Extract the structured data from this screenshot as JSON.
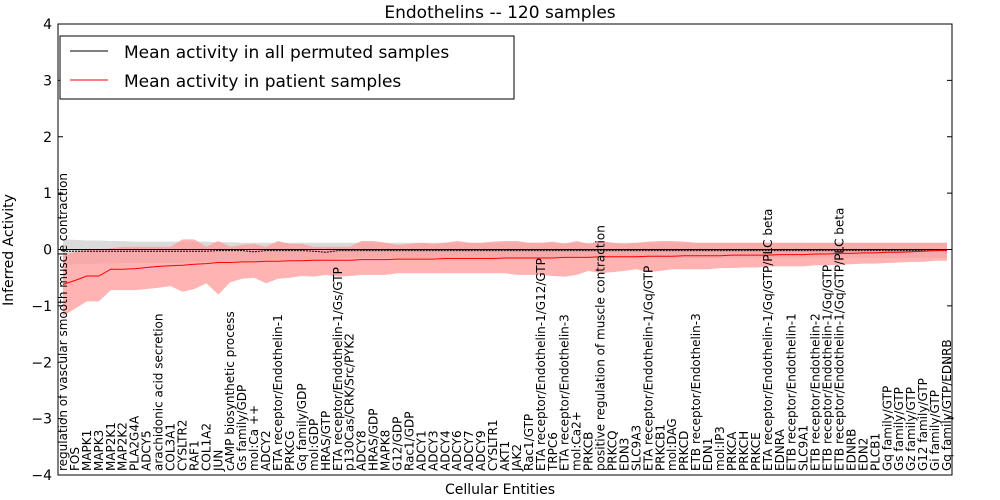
{
  "chart_data": {
    "type": "line",
    "title": "Endothelins -- 120 samples",
    "xlabel": "Cellular Entities",
    "ylabel": "Inferred Activity",
    "ylim": [
      -4,
      4
    ],
    "yticks": [
      "4",
      "3",
      "2",
      "1",
      "0",
      "−1",
      "−2",
      "−3",
      "−4"
    ],
    "grid": false,
    "legend_position": "top-left",
    "colors": {
      "permuted": "#000000",
      "patient": "#ff0000",
      "patient_band": "#ff9999",
      "permuted_band": "#cccccc"
    },
    "categories": [
      "regulation of vascular smooth muscle contraction",
      "FOS",
      "MAPK1",
      "MAPK3",
      "MAP2K1",
      "MAP2K2",
      "PLA2G4A",
      "ADCY5",
      "arachidonic acid secretion",
      "COL3A1",
      "CYSLTR2",
      "RAF1",
      "COL1A2",
      "JUN",
      "cAMP biosynthetic process",
      "Gs family/GDP",
      "mol:Ca ++",
      "ADCY2",
      "ETA receptor/Endothelin-1",
      "PRKCG",
      "Gq family/GDP",
      "mol:GDP",
      "HRAS/GTP",
      "ETA receptor/Endothelin-1/Gs/GTP",
      "p130Cas/CRK/Src/PYK2",
      "ADCY8",
      "HRAS/GDP",
      "MAPK8",
      "G12/GDP",
      "Rac1/GDP",
      "ADCY1",
      "ADCY3",
      "ADCY4",
      "ADCY6",
      "ADCY7",
      "ADCY9",
      "CYSLTR1",
      "AKT1",
      "JAK2",
      "Rac1/GTP",
      "ETA receptor/Endothelin-1/G12/GTP",
      "TRPC6",
      "ETA receptor/Endothelin-3",
      "mol:Ca2+",
      "PRKCB",
      "positive regulation of muscle contraction",
      "PRKCQ",
      "EDN3",
      "SLC9A3",
      "ETA receptor/Endothelin-1/Gq/GTP",
      "PRKCB1",
      "mol:DAG",
      "PRKCD",
      "ETB receptor/Endothelin-3",
      "EDN1",
      "mol:IP3",
      "PRKCA",
      "PRKCH",
      "PRKCE",
      "ETA receptor/Endothelin-1/Gq/GTP/PLC beta",
      "EDNRA",
      "ETB receptor/Endothelin-1",
      "SLC9A1",
      "ETB receptor/Endothelin-2",
      "ETB receptor/Endothelin-1/Gq/GTP",
      "ETB receptor/Endothelin-1/Gq/GTP/PLC beta",
      "EDNRB",
      "EDN2",
      "PLCB1",
      "Gq family/GTP",
      "Gs family/GTP",
      "Gz family/GTP",
      "G12 family/GTP",
      "Gi family/GTP",
      "Gq family/GTP/EDNRB"
    ],
    "series": [
      {
        "name": "Mean activity in all permuted samples",
        "values": [
          -0.03,
          -0.03,
          -0.03,
          -0.03,
          -0.03,
          -0.03,
          -0.03,
          -0.03,
          -0.03,
          -0.03,
          -0.03,
          -0.03,
          -0.03,
          -0.02,
          -0.02,
          -0.02,
          -0.04,
          -0.02,
          -0.02,
          -0.02,
          -0.02,
          -0.03,
          -0.05,
          -0.02,
          -0.02,
          -0.02,
          -0.02,
          -0.02,
          -0.02,
          -0.02,
          -0.02,
          -0.02,
          -0.02,
          -0.02,
          -0.02,
          -0.02,
          -0.02,
          -0.02,
          -0.02,
          -0.02,
          -0.02,
          -0.02,
          -0.02,
          -0.02,
          -0.02,
          -0.02,
          -0.02,
          -0.02,
          -0.02,
          -0.02,
          -0.02,
          -0.02,
          -0.02,
          -0.02,
          -0.02,
          -0.02,
          -0.02,
          -0.02,
          -0.02,
          -0.02,
          -0.02,
          -0.02,
          -0.02,
          -0.02,
          -0.02,
          -0.02,
          -0.02,
          -0.02,
          -0.02,
          -0.02,
          -0.02,
          -0.02,
          -0.02,
          -0.02,
          -0.02
        ],
        "lower": [
          -0.28,
          -0.26,
          -0.26,
          -0.25,
          -0.25,
          -0.24,
          -0.24,
          -0.24,
          -0.24,
          -0.24,
          -0.24,
          -0.22,
          -0.22,
          -0.22,
          -0.2,
          -0.2,
          -0.2,
          -0.18,
          -0.18,
          -0.18,
          -0.18,
          -0.18,
          -0.18,
          -0.15,
          -0.15,
          -0.15,
          -0.15,
          -0.15,
          -0.15,
          -0.15,
          -0.15,
          -0.15,
          -0.15,
          -0.15,
          -0.15,
          -0.15,
          -0.15,
          -0.15,
          -0.15,
          -0.15,
          -0.15,
          -0.15,
          -0.15,
          -0.15,
          -0.15,
          -0.15,
          -0.15,
          -0.15,
          -0.15,
          -0.15,
          -0.15,
          -0.15,
          -0.15,
          -0.15,
          -0.15,
          -0.15,
          -0.15,
          -0.15,
          -0.15,
          -0.15,
          -0.15,
          -0.15,
          -0.15,
          -0.15,
          -0.15,
          -0.15,
          -0.15,
          -0.15,
          -0.15,
          -0.15,
          -0.15,
          -0.15,
          -0.15,
          -0.15,
          -0.15
        ],
        "upper": [
          0.18,
          0.17,
          0.16,
          0.16,
          0.15,
          0.15,
          0.14,
          0.14,
          0.14,
          0.14,
          0.14,
          0.14,
          0.14,
          0.13,
          0.13,
          0.12,
          0.12,
          0.12,
          0.12,
          0.12,
          0.12,
          0.12,
          0.12,
          0.12,
          0.12,
          0.12,
          0.12,
          0.12,
          0.12,
          0.12,
          0.12,
          0.12,
          0.12,
          0.12,
          0.12,
          0.12,
          0.12,
          0.12,
          0.12,
          0.12,
          0.12,
          0.12,
          0.12,
          0.12,
          0.12,
          0.12,
          0.12,
          0.12,
          0.12,
          0.12,
          0.12,
          0.12,
          0.12,
          0.12,
          0.12,
          0.12,
          0.12,
          0.12,
          0.12,
          0.12,
          0.12,
          0.12,
          0.12,
          0.12,
          0.12,
          0.12,
          0.12,
          0.12,
          0.12,
          0.12,
          0.12,
          0.12,
          0.12,
          0.12,
          0.12
        ]
      },
      {
        "name": "Mean activity in patient samples",
        "values": [
          -0.62,
          -0.55,
          -0.47,
          -0.47,
          -0.35,
          -0.35,
          -0.34,
          -0.32,
          -0.3,
          -0.29,
          -0.28,
          -0.26,
          -0.25,
          -0.23,
          -0.23,
          -0.22,
          -0.22,
          -0.21,
          -0.21,
          -0.2,
          -0.2,
          -0.19,
          -0.19,
          -0.19,
          -0.19,
          -0.18,
          -0.18,
          -0.18,
          -0.17,
          -0.17,
          -0.17,
          -0.17,
          -0.16,
          -0.16,
          -0.16,
          -0.16,
          -0.16,
          -0.15,
          -0.15,
          -0.15,
          -0.15,
          -0.15,
          -0.14,
          -0.14,
          -0.14,
          -0.13,
          -0.13,
          -0.13,
          -0.13,
          -0.12,
          -0.12,
          -0.12,
          -0.11,
          -0.11,
          -0.11,
          -0.11,
          -0.1,
          -0.1,
          -0.1,
          -0.1,
          -0.09,
          -0.09,
          -0.09,
          -0.08,
          -0.08,
          -0.07,
          -0.07,
          -0.06,
          -0.06,
          -0.05,
          -0.05,
          -0.04,
          -0.03,
          -0.02,
          -0.01
        ],
        "lower": [
          -1.18,
          -1.05,
          -0.92,
          -0.92,
          -0.72,
          -0.72,
          -0.72,
          -0.7,
          -0.68,
          -0.65,
          -0.75,
          -0.7,
          -0.6,
          -0.8,
          -0.58,
          -0.52,
          -0.5,
          -0.6,
          -0.52,
          -0.5,
          -0.47,
          -0.48,
          -0.45,
          -0.48,
          -0.47,
          -0.45,
          -0.45,
          -0.45,
          -0.42,
          -0.42,
          -0.42,
          -0.42,
          -0.42,
          -0.42,
          -0.42,
          -0.42,
          -0.42,
          -0.42,
          -0.45,
          -0.45,
          -0.45,
          -0.47,
          -0.48,
          -0.45,
          -0.38,
          -0.42,
          -0.4,
          -0.38,
          -0.35,
          -0.4,
          -0.38,
          -0.35,
          -0.35,
          -0.35,
          -0.35,
          -0.33,
          -0.33,
          -0.32,
          -0.32,
          -0.3,
          -0.3,
          -0.3,
          -0.3,
          -0.28,
          -0.28,
          -0.27,
          -0.26,
          -0.25,
          -0.25,
          -0.24,
          -0.23,
          -0.22,
          -0.22,
          -0.2,
          -0.2
        ],
        "upper": [
          -0.1,
          -0.05,
          0.0,
          0.0,
          0.02,
          0.05,
          0.05,
          0.05,
          0.05,
          0.05,
          0.18,
          0.18,
          0.05,
          0.15,
          0.05,
          0.08,
          0.1,
          0.05,
          0.15,
          0.1,
          0.1,
          0.05,
          0.05,
          0.05,
          0.05,
          0.15,
          0.15,
          0.12,
          0.08,
          0.1,
          0.12,
          0.1,
          0.12,
          0.15,
          0.12,
          0.12,
          0.14,
          0.15,
          0.15,
          0.12,
          0.12,
          0.14,
          0.1,
          0.15,
          0.1,
          0.15,
          0.12,
          0.1,
          0.12,
          0.14,
          0.15,
          0.15,
          0.14,
          0.12,
          0.12,
          0.12,
          0.12,
          0.12,
          0.12,
          0.12,
          0.12,
          0.12,
          0.12,
          0.12,
          0.12,
          0.12,
          0.12,
          0.12,
          0.12,
          0.12,
          0.12,
          0.12,
          0.12,
          0.12,
          0.12
        ]
      }
    ]
  }
}
